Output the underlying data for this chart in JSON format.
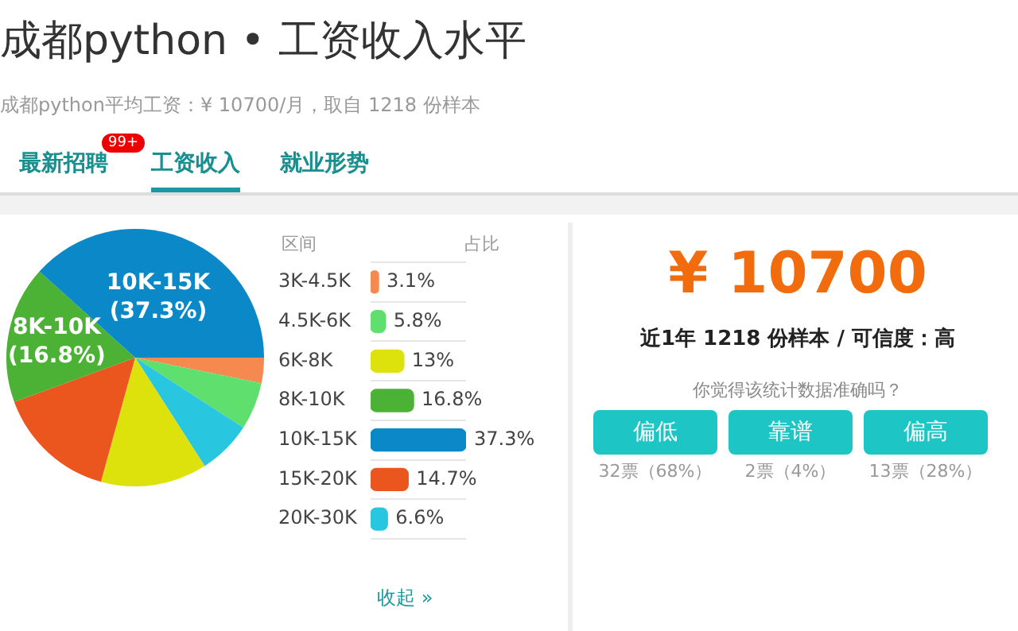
{
  "chart_data": [
    {
      "type": "pie",
      "title": "成都python • 工资收入水平",
      "subtitle": "成都python平均工资：¥ 10700/月，取自 1218 份样本",
      "annotations": [
        "最新招聘",
        "99+",
        "工资收入",
        "就业形势"
      ],
      "categories": [
        null,
        null,
        null,
        null,
        null,
        "8K-10K",
        "10K-15K"
      ],
      "values": [
        3.1,
        5.8,
        6.6,
        13,
        14.7,
        16.8,
        37.3
      ],
      "colors": [
        "#f5894f",
        "#5fe06e",
        "#29c6e0",
        "#dde10c",
        "#eb561e",
        "#4cb235",
        "#0a88c8"
      ],
      "value_labels": [
        null,
        null,
        null,
        null,
        null,
        "(16.8%)",
        "(37.3%)"
      ]
    },
    {
      "type": "bar",
      "orientation": "horizontal",
      "categories": [
        "3K-4.5K",
        "4.5K-6K",
        "6K-8K",
        "8K-10K",
        "10K-15K",
        "15K-20K",
        "20K-30K"
      ],
      "values": [
        3.1,
        5.8,
        13,
        16.8,
        37.3,
        14.7,
        6.6
      ],
      "colors": [
        "#f5894f",
        "#5fe06e",
        "#dde10c",
        "#4cb235",
        "#0a88c8",
        "#eb561e",
        "#29c6e0"
      ],
      "value_labels": [
        "3.1%",
        "5.8%",
        "13%",
        "16.8%",
        "37.3%",
        "14.7%",
        "6.6%"
      ],
      "grid": "y",
      "annotations": [
        "区间",
        "占比",
        "收起 »"
      ]
    },
    {
      "type": "other",
      "title": "¥ 10700",
      "subtitle": "近1年 1218 份样本 / 可信度：高",
      "annotations": [
        "你觉得该统计数据准确吗？",
        "偏低",
        "32票（68%）",
        "靠谱",
        "2票（4%）",
        "偏高",
        "13票（28%）"
      ]
    }
  ]
}
